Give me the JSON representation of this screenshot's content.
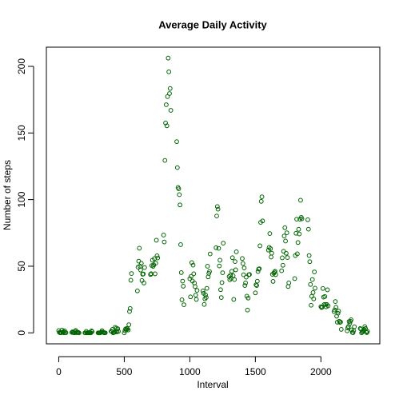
{
  "chart_data": {
    "type": "scatter",
    "title": "Average Daily Activity",
    "xlabel": "Interval",
    "ylabel": "Number of steps",
    "color": "#006400",
    "xlim": [
      -94.2,
      2449.2
    ],
    "ylim": [
      -8.25,
      214.4
    ],
    "xticks": [
      0,
      500,
      1000,
      1500,
      2000
    ],
    "yticks": [
      0,
      50,
      100,
      150,
      200
    ],
    "x": [
      0,
      5,
      10,
      15,
      20,
      25,
      30,
      35,
      40,
      45,
      50,
      55,
      100,
      105,
      110,
      115,
      120,
      125,
      130,
      135,
      140,
      145,
      150,
      155,
      200,
      205,
      210,
      215,
      220,
      225,
      230,
      235,
      240,
      245,
      250,
      255,
      300,
      305,
      310,
      315,
      320,
      325,
      330,
      335,
      340,
      345,
      350,
      355,
      400,
      405,
      410,
      415,
      420,
      425,
      430,
      435,
      440,
      445,
      450,
      455,
      500,
      505,
      510,
      515,
      520,
      525,
      530,
      535,
      540,
      545,
      550,
      555,
      600,
      605,
      610,
      615,
      620,
      625,
      630,
      635,
      640,
      645,
      650,
      655,
      700,
      705,
      710,
      715,
      720,
      725,
      730,
      735,
      740,
      745,
      750,
      755,
      800,
      805,
      810,
      815,
      820,
      825,
      830,
      835,
      840,
      845,
      850,
      855,
      900,
      905,
      910,
      915,
      920,
      925,
      930,
      935,
      940,
      945,
      950,
      955,
      1000,
      1005,
      1010,
      1015,
      1020,
      1025,
      1030,
      1035,
      1040,
      1045,
      1050,
      1055,
      1100,
      1105,
      1110,
      1115,
      1120,
      1125,
      1130,
      1135,
      1140,
      1145,
      1150,
      1155,
      1200,
      1205,
      1210,
      1215,
      1220,
      1225,
      1230,
      1235,
      1240,
      1245,
      1250,
      1255,
      1300,
      1305,
      1310,
      1315,
      1320,
      1325,
      1330,
      1335,
      1340,
      1345,
      1350,
      1355,
      1400,
      1405,
      1410,
      1415,
      1420,
      1425,
      1430,
      1435,
      1440,
      1445,
      1450,
      1455,
      1500,
      1505,
      1510,
      1515,
      1520,
      1525,
      1530,
      1535,
      1540,
      1545,
      1550,
      1555,
      1600,
      1605,
      1610,
      1615,
      1620,
      1625,
      1630,
      1635,
      1640,
      1645,
      1650,
      1655,
      1700,
      1705,
      1710,
      1715,
      1720,
      1725,
      1730,
      1735,
      1740,
      1745,
      1750,
      1755,
      1800,
      1805,
      1810,
      1815,
      1820,
      1825,
      1830,
      1835,
      1840,
      1845,
      1850,
      1855,
      1900,
      1905,
      1910,
      1915,
      1920,
      1925,
      1930,
      1935,
      1940,
      1945,
      1950,
      1955,
      2000,
      2005,
      2010,
      2015,
      2020,
      2025,
      2030,
      2035,
      2040,
      2045,
      2050,
      2055,
      2100,
      2105,
      2110,
      2115,
      2120,
      2125,
      2130,
      2135,
      2140,
      2145,
      2150,
      2155,
      2200,
      2205,
      2210,
      2215,
      2220,
      2225,
      2230,
      2235,
      2240,
      2245,
      2250,
      2255,
      2300,
      2305,
      2310,
      2315,
      2320,
      2325,
      2330,
      2335,
      2340,
      2345,
      2350,
      2355
    ],
    "values": [
      1.7,
      0.3,
      0.1,
      0.2,
      0.1,
      2.1,
      0.5,
      0.9,
      0,
      1.5,
      0.3,
      0.1,
      0.3,
      0.7,
      0.2,
      0.3,
      0,
      1.1,
      1.8,
      0.2,
      0.2,
      0.4,
      0.3,
      0,
      0,
      0,
      1.1,
      0,
      0,
      0.1,
      0,
      0.2,
      0,
      0,
      1.5,
      0.9,
      0,
      0,
      0,
      0,
      0.2,
      0.6,
      1.6,
      0.6,
      0.5,
      0.1,
      0,
      0,
      1.2,
      0.9,
      2.6,
      0,
      0.3,
      0.4,
      4.1,
      0.7,
      3.5,
      0.8,
      3.1,
      1.1,
      0,
      1.6,
      3,
      2.2,
      3.3,
      3,
      2.1,
      6.1,
      16,
      18.3,
      39.5,
      44.5,
      31.5,
      49.3,
      53.8,
      63.5,
      50,
      47.1,
      52.2,
      39.3,
      44,
      44.2,
      37.4,
      49,
      43.8,
      44.4,
      50.5,
      54.5,
      49.9,
      51,
      55.7,
      44.3,
      52.3,
      69.5,
      57.8,
      56.2,
      73.4,
      68.2,
      129.4,
      157.5,
      171.2,
      155.4,
      177.3,
      206.2,
      195.9,
      179.6,
      183.4,
      167,
      143.5,
      124,
      109.1,
      108.1,
      103.7,
      96,
      66.2,
      45.2,
      24.8,
      38.8,
      35,
      21.1,
      40.6,
      27,
      42.4,
      52.7,
      38.9,
      50.8,
      44.3,
      37.4,
      34.7,
      28.3,
      25.1,
      31.9,
      31.4,
      29.7,
      21.3,
      25.5,
      28.4,
      26.5,
      33.4,
      50,
      42,
      44.6,
      46,
      59.2,
      63.9,
      87.7,
      94.8,
      92.8,
      63.4,
      50.2,
      54.5,
      32.4,
      26.5,
      37.7,
      45.1,
      67.3,
      42.3,
      39.9,
      43.3,
      41,
      46.2,
      56.4,
      42.8,
      25.1,
      40,
      53.5,
      47.3,
      60.8,
      55.8,
      52,
      43.6,
      48.7,
      35.5,
      37.5,
      41.8,
      27.5,
      17.1,
      26.1,
      43.6,
      43.8,
      30,
      36.1,
      35.5,
      38.8,
      46,
      47.8,
      48.1,
      65.3,
      82.9,
      98.7,
      102.1,
      84,
      62.1,
      64.1,
      74.5,
      63.2,
      56.9,
      59.8,
      43.9,
      38.6,
      44.7,
      45.5,
      46.2,
      43.7,
      46.6,
      56.3,
      50.7,
      61.2,
      72.7,
      78.9,
      68.9,
      59.7,
      75.1,
      56.5,
      34.8,
      37.5,
      40.7,
      58,
      74.7,
      85.3,
      59.3,
      67.8,
      77.7,
      74.2,
      85.3,
      99.5,
      86.6,
      85.6,
      84.9,
      77.8,
      58,
      53.4,
      36.3,
      20.7,
      27.4,
      40,
      30.2,
      25.5,
      45.7,
      33.5,
      19.6,
      19,
      19.3,
      33.3,
      26.8,
      21.2,
      27.3,
      21.3,
      19.5,
      21.3,
      32.3,
      20.2,
      15.9,
      17.2,
      23.5,
      19.2,
      12.5,
      8,
      14.7,
      16.3,
      8.7,
      7.8,
      8.1,
      2.6,
      1.5,
      3.7,
      4.8,
      8.5,
      7.1,
      8.7,
      9.8,
      2.2,
      0.3,
      0.1,
      1.6,
      4.6,
      3.3,
      2.8,
      0,
      0.8,
      1,
      1.6,
      2.6,
      4.7,
      3.3,
      0.6,
      0.2,
      1.1
    ]
  }
}
